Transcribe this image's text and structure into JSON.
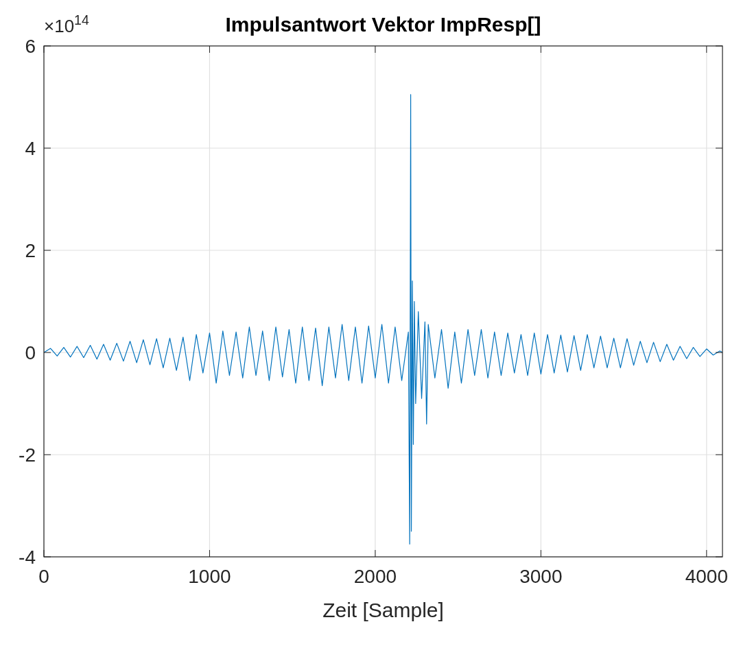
{
  "chart_data": {
    "type": "line",
    "title": "Impulsantwort Vektor ImpResp[]",
    "xlabel": "Zeit [Sample]",
    "annotations": [
      "×10$^{14}$"
    ],
    "xlim": [
      0,
      4096
    ],
    "xticks": [
      0,
      1000,
      2000,
      3000,
      4000
    ],
    "ylim": [
      -4,
      6
    ],
    "yticks": [
      -4,
      -2,
      0,
      2,
      4,
      6
    ],
    "grid": true,
    "series": [
      {
        "color": "#0072bd",
        "x": [
          0,
          40,
          80,
          120,
          160,
          200,
          240,
          280,
          320,
          360,
          400,
          440,
          480,
          520,
          560,
          600,
          640,
          680,
          720,
          760,
          800,
          840,
          880,
          920,
          960,
          1000,
          1040,
          1080,
          1120,
          1160,
          1200,
          1240,
          1280,
          1320,
          1360,
          1400,
          1440,
          1480,
          1520,
          1560,
          1600,
          1640,
          1680,
          1720,
          1760,
          1800,
          1840,
          1880,
          1920,
          1960,
          2000,
          2040,
          2080,
          2120,
          2160,
          2200,
          2208,
          2214,
          2218,
          2224,
          2230,
          2236,
          2244,
          2260,
          2280,
          2300,
          2310,
          2320,
          2360,
          2400,
          2440,
          2480,
          2520,
          2560,
          2600,
          2640,
          2680,
          2720,
          2760,
          2800,
          2840,
          2880,
          2920,
          2960,
          3000,
          3040,
          3080,
          3120,
          3160,
          3200,
          3240,
          3280,
          3320,
          3360,
          3400,
          3440,
          3480,
          3520,
          3560,
          3600,
          3640,
          3680,
          3720,
          3760,
          3800,
          3840,
          3880,
          3920,
          3960,
          4000,
          4040,
          4080,
          4096
        ],
        "values": [
          0,
          0.08,
          -0.07,
          0.1,
          -0.09,
          0.12,
          -0.1,
          0.14,
          -0.13,
          0.16,
          -0.15,
          0.18,
          -0.17,
          0.22,
          -0.2,
          0.25,
          -0.24,
          0.27,
          -0.3,
          0.28,
          -0.35,
          0.3,
          -0.55,
          0.35,
          -0.4,
          0.38,
          -0.6,
          0.42,
          -0.45,
          0.4,
          -0.5,
          0.5,
          -0.45,
          0.42,
          -0.55,
          0.5,
          -0.48,
          0.45,
          -0.6,
          0.5,
          -0.55,
          0.48,
          -0.65,
          0.5,
          -0.5,
          0.55,
          -0.55,
          0.5,
          -0.6,
          0.52,
          -0.5,
          0.55,
          -0.6,
          0.5,
          -0.55,
          0.4,
          -3.75,
          5.05,
          -3.5,
          1.4,
          -1.8,
          1,
          -1,
          0.8,
          -0.9,
          0.6,
          -1.4,
          0.55,
          -0.5,
          0.45,
          -0.7,
          0.4,
          -0.6,
          0.45,
          -0.45,
          0.45,
          -0.5,
          0.4,
          -0.45,
          0.38,
          -0.4,
          0.35,
          -0.45,
          0.38,
          -0.42,
          0.35,
          -0.4,
          0.34,
          -0.38,
          0.33,
          -0.35,
          0.35,
          -0.3,
          0.32,
          -0.3,
          0.28,
          -0.3,
          0.27,
          -0.25,
          0.22,
          -0.2,
          0.2,
          -0.18,
          0.16,
          -0.15,
          0.12,
          -0.12,
          0.1,
          -0.08,
          0.07,
          -0.05,
          0.03,
          0
        ]
      }
    ]
  }
}
